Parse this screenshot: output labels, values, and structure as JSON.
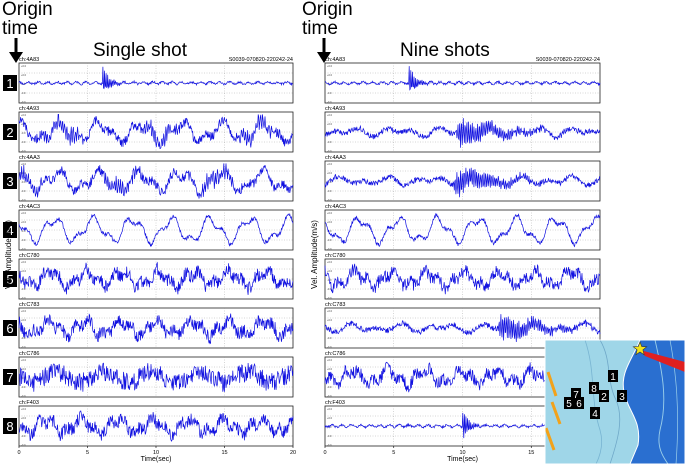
{
  "labels": {
    "origin_line1": "Origin",
    "origin_line2": "time",
    "single_title": "Single shot",
    "nine_title": "Nine shots",
    "ylabel": "Vel. Amplitude(m/s)",
    "xlabel": "Time(sec)"
  },
  "chart_data": [
    {
      "type": "line",
      "title": "Single shot",
      "header_right": "S0039-070820-220242-24",
      "xlabel": "Time(sec)",
      "ylabel": "Vel. Amplitude(m/s)",
      "xlim": [
        0,
        20
      ],
      "xticks": [
        "0",
        "5",
        "10",
        "15",
        "20"
      ],
      "grid": true,
      "series_color": "#1010e0",
      "series": [
        {
          "index": "1",
          "channel": "ch:4A83",
          "pattern": "impulse",
          "event_time": 6.1
        },
        {
          "index": "2",
          "channel": "ch:4A93",
          "pattern": "noise-swells",
          "event_time": null
        },
        {
          "index": "3",
          "channel": "ch:4AA3",
          "pattern": "noise-swells",
          "event_time": null
        },
        {
          "index": "4",
          "channel": "ch:4AC3",
          "pattern": "slow-waves",
          "event_time": null
        },
        {
          "index": "5",
          "channel": "ch:C780",
          "pattern": "noise",
          "event_time": null
        },
        {
          "index": "6",
          "channel": "ch:C783",
          "pattern": "noise",
          "event_time": null
        },
        {
          "index": "7",
          "channel": "ch:C786",
          "pattern": "dense-noise",
          "event_time": null
        },
        {
          "index": "8",
          "channel": "ch:F403",
          "pattern": "noise",
          "event_time": null
        }
      ]
    },
    {
      "type": "line",
      "title": "Nine shots",
      "header_right": "S0039-070820-220242-24",
      "xlabel": "Time(sec)",
      "ylabel": "Vel. Amplitude(m/s)",
      "xlim": [
        0,
        20
      ],
      "xticks": [
        "0",
        "5",
        "10",
        "15",
        "20"
      ],
      "grid": true,
      "series_color": "#1010e0",
      "series": [
        {
          "channel": "ch:4A83",
          "pattern": "impulse",
          "event_time": 6.1
        },
        {
          "channel": "ch:4A93",
          "pattern": "burst",
          "event_time": 9.5
        },
        {
          "channel": "ch:4AA3",
          "pattern": "burst",
          "event_time": 9.3
        },
        {
          "channel": "ch:4AC3",
          "pattern": "slow-waves",
          "event_time": null
        },
        {
          "channel": "ch:C780",
          "pattern": "noise",
          "event_time": null
        },
        {
          "channel": "ch:C783",
          "pattern": "burst",
          "event_time": 12.5
        },
        {
          "channel": "ch:C786",
          "pattern": "noise",
          "event_time": null
        },
        {
          "channel": "ch:F403",
          "pattern": "impulse",
          "event_time": 10.0
        }
      ]
    }
  ],
  "map": {
    "markers": [
      "1",
      "2",
      "3",
      "4",
      "5",
      "6",
      "7",
      "8"
    ],
    "source_symbol": "star",
    "source_color": "#f2e21a",
    "land_color": "#9fd6e8",
    "sea_color": "#2a6fd0"
  }
}
